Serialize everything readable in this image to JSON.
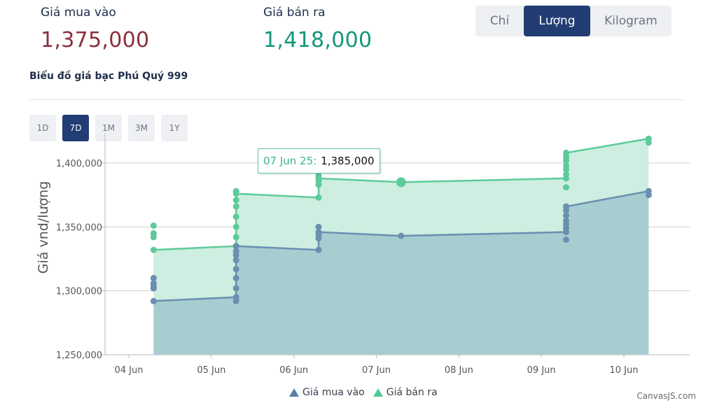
{
  "prices": {
    "buy_label": "Giá mua vào",
    "buy_value": "1,375,000",
    "sell_label": "Giá bán ra",
    "sell_value": "1,418,000"
  },
  "units": [
    {
      "label": "Chỉ",
      "active": false
    },
    {
      "label": "Lượng",
      "active": true
    },
    {
      "label": "Kilogram",
      "active": false
    }
  ],
  "chart_title": "Biểu đồ giá bạc Phú Quý 999",
  "ranges": [
    {
      "label": "1D",
      "active": false
    },
    {
      "label": "7D",
      "active": true
    },
    {
      "label": "1M",
      "active": false
    },
    {
      "label": "3M",
      "active": false
    },
    {
      "label": "1Y",
      "active": false
    }
  ],
  "tooltip": {
    "date": "07 Jun 25:",
    "value": "1,385,000"
  },
  "credit": "CanvasJS.com",
  "colors": {
    "buy_line": "#6a8fb0",
    "buy_fill": "#a7cdd0",
    "sell_line": "#5ccb9a",
    "sell_fill": "#cdeee0",
    "active": "#223d73"
  },
  "chart_data": {
    "type": "area",
    "ylabel": "Giá vnd/lượng",
    "xlabel": "",
    "ylim": [
      1250000,
      1420000
    ],
    "yticks": [
      1250000,
      1300000,
      1350000,
      1400000
    ],
    "ytick_labels": [
      "1,250,000",
      "1,300,000",
      "1,350,000",
      "1,400,000"
    ],
    "xtick_labels": [
      "04 Jun",
      "05 Jun",
      "06 Jun",
      "07 Jun",
      "08 Jun",
      "09 Jun",
      "10 Jun"
    ],
    "legend_position": "bottom",
    "grid": true,
    "series": [
      {
        "name": "Giá mua vào",
        "color": "#6a8fb0",
        "line_points": [
          [
            4.3,
            1292000
          ],
          [
            5.3,
            1295000
          ],
          [
            5.3,
            1335000
          ],
          [
            6.3,
            1332000
          ],
          [
            6.3,
            1346000
          ],
          [
            7.3,
            1343000
          ],
          [
            9.3,
            1346000
          ],
          [
            9.3,
            1366000
          ],
          [
            10.3,
            1378000
          ]
        ],
        "markers": [
          [
            4.3,
            1292000
          ],
          [
            4.3,
            1302000
          ],
          [
            4.3,
            1304000
          ],
          [
            4.3,
            1306000
          ],
          [
            4.3,
            1310000
          ],
          [
            5.3,
            1292000
          ],
          [
            5.3,
            1295000
          ],
          [
            5.3,
            1302000
          ],
          [
            5.3,
            1310000
          ],
          [
            5.3,
            1317000
          ],
          [
            5.3,
            1324000
          ],
          [
            5.3,
            1328000
          ],
          [
            5.3,
            1331000
          ],
          [
            5.3,
            1335000
          ],
          [
            6.3,
            1332000
          ],
          [
            6.3,
            1341000
          ],
          [
            6.3,
            1344000
          ],
          [
            6.3,
            1346000
          ],
          [
            6.3,
            1350000
          ],
          [
            7.3,
            1343000
          ],
          [
            9.3,
            1340000
          ],
          [
            9.3,
            1346000
          ],
          [
            9.3,
            1349000
          ],
          [
            9.3,
            1352000
          ],
          [
            9.3,
            1355000
          ],
          [
            9.3,
            1359000
          ],
          [
            9.3,
            1363000
          ],
          [
            9.3,
            1366000
          ],
          [
            10.3,
            1375000
          ],
          [
            10.3,
            1378000
          ]
        ]
      },
      {
        "name": "Giá bán ra",
        "color": "#5ccb9a",
        "line_points": [
          [
            4.3,
            1332000
          ],
          [
            5.3,
            1335000
          ],
          [
            5.3,
            1376000
          ],
          [
            6.3,
            1373000
          ],
          [
            6.3,
            1388000
          ],
          [
            7.3,
            1385000
          ],
          [
            9.3,
            1388000
          ],
          [
            9.3,
            1408000
          ],
          [
            10.3,
            1419000
          ]
        ],
        "markers": [
          [
            4.3,
            1332000
          ],
          [
            4.3,
            1342000
          ],
          [
            4.3,
            1345000
          ],
          [
            4.3,
            1351000
          ],
          [
            5.3,
            1335000
          ],
          [
            5.3,
            1342000
          ],
          [
            5.3,
            1350000
          ],
          [
            5.3,
            1358000
          ],
          [
            5.3,
            1366000
          ],
          [
            5.3,
            1371000
          ],
          [
            5.3,
            1376000
          ],
          [
            5.3,
            1378000
          ],
          [
            6.3,
            1373000
          ],
          [
            6.3,
            1383000
          ],
          [
            6.3,
            1386000
          ],
          [
            6.3,
            1388000
          ],
          [
            6.3,
            1390000
          ],
          [
            6.3,
            1393000
          ],
          [
            7.3,
            1385000
          ],
          [
            9.3,
            1381000
          ],
          [
            9.3,
            1388000
          ],
          [
            9.3,
            1391000
          ],
          [
            9.3,
            1395000
          ],
          [
            9.3,
            1398000
          ],
          [
            9.3,
            1402000
          ],
          [
            9.3,
            1405000
          ],
          [
            9.3,
            1408000
          ],
          [
            10.3,
            1416000
          ],
          [
            10.3,
            1419000
          ]
        ]
      }
    ],
    "highlight": {
      "series": 1,
      "x": 7.3,
      "y": 1385000
    }
  }
}
